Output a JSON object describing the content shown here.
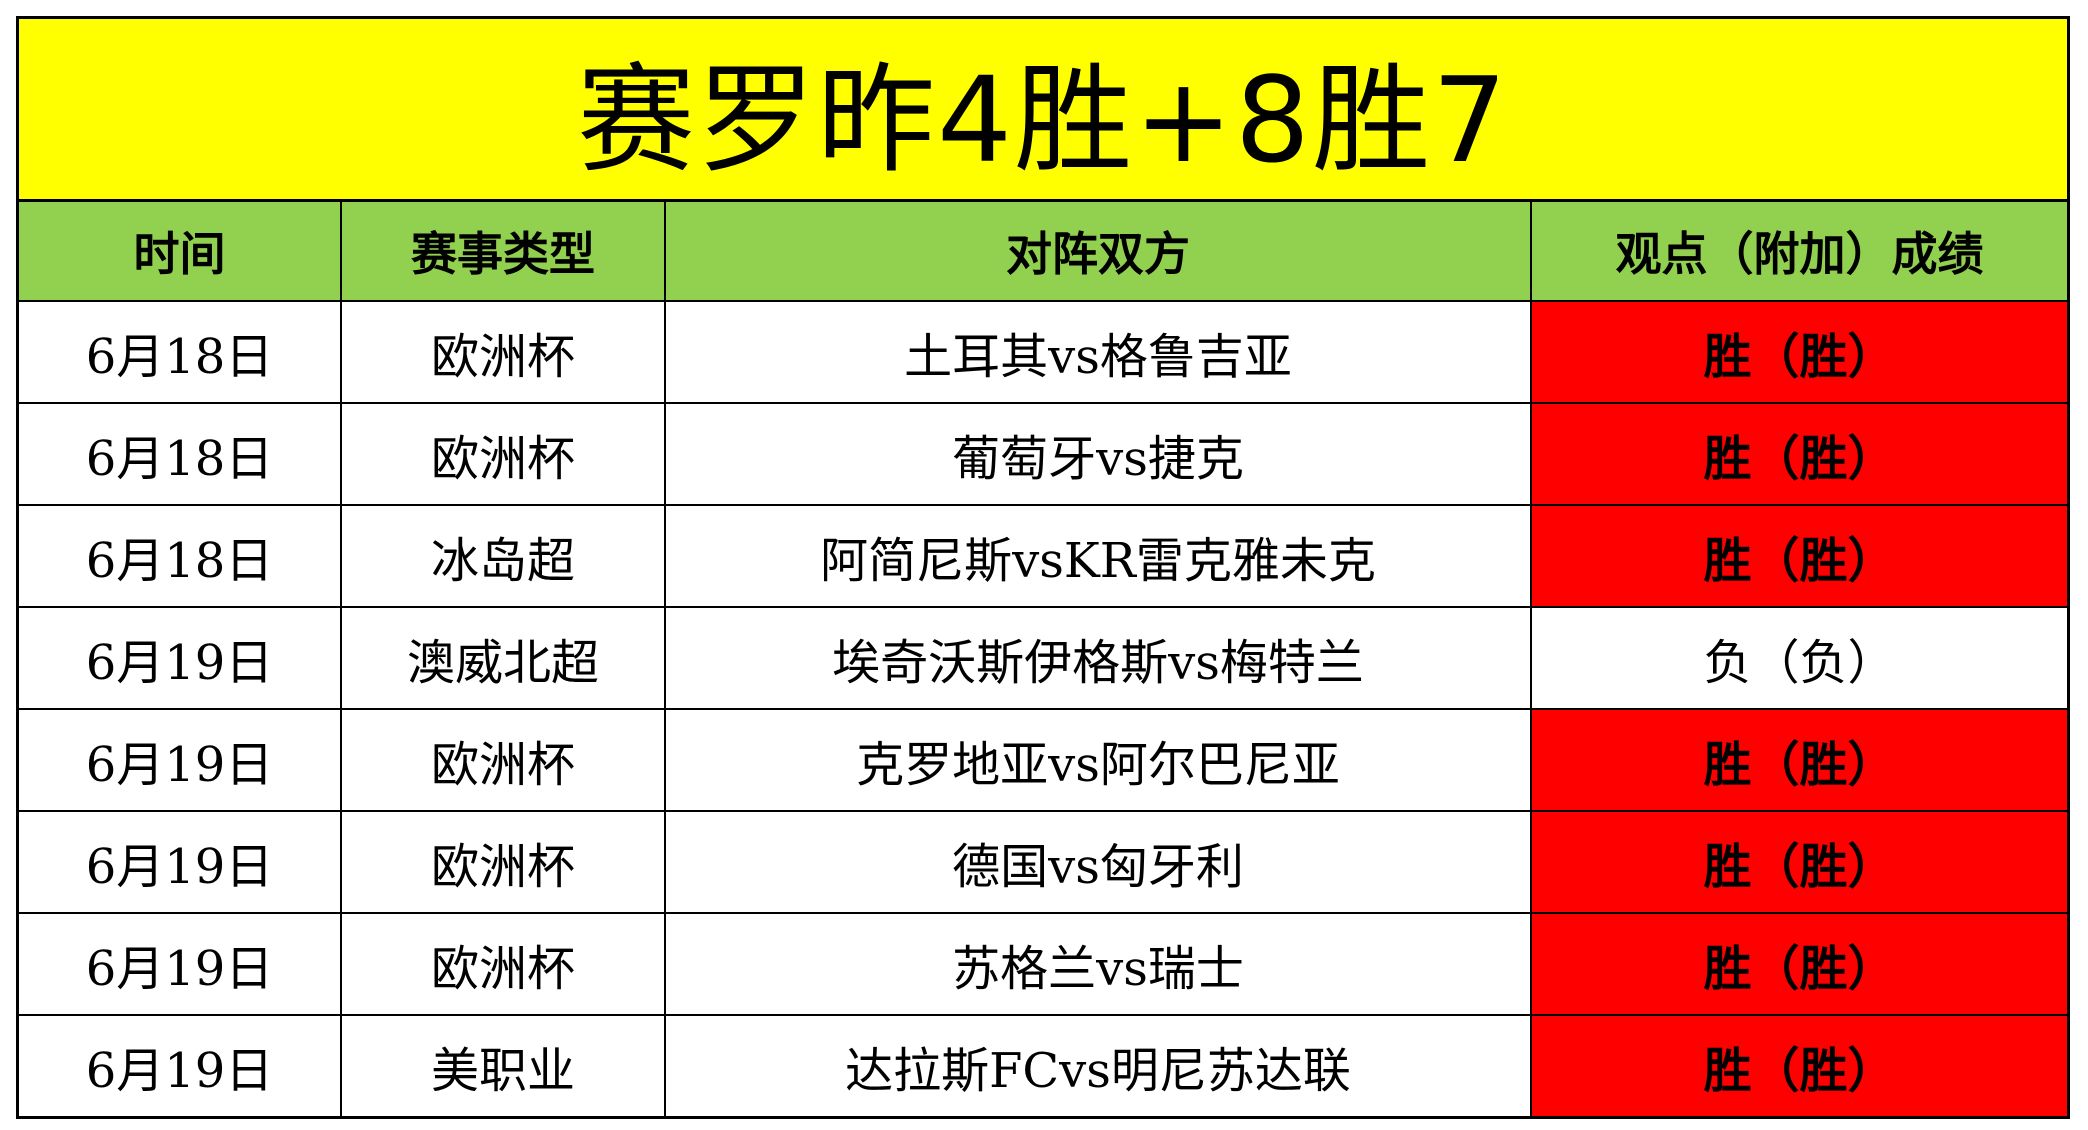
{
  "title": "赛罗昨4胜+8胜7",
  "colors": {
    "title_bg": "#ffff00",
    "header_bg": "#92d050",
    "win_bg": "#ff0000",
    "loss_bg": "#ffffff"
  },
  "headers": [
    "时间",
    "赛事类型",
    "对阵双方",
    "观点（附加）成绩"
  ],
  "rows": [
    {
      "date": "6月18日",
      "league": "欧洲杯",
      "match": "土耳其vs格鲁吉亚",
      "result": "胜（胜）",
      "status": "win"
    },
    {
      "date": "6月18日",
      "league": "欧洲杯",
      "match": "葡萄牙vs捷克",
      "result": "胜（胜）",
      "status": "win"
    },
    {
      "date": "6月18日",
      "league": "冰岛超",
      "match": "阿简尼斯vsKR雷克雅未克",
      "result": "胜（胜）",
      "status": "win"
    },
    {
      "date": "6月19日",
      "league": "澳威北超",
      "match": "埃奇沃斯伊格斯vs梅特兰",
      "result": "负（负）",
      "status": "loss"
    },
    {
      "date": "6月19日",
      "league": "欧洲杯",
      "match": "克罗地亚vs阿尔巴尼亚",
      "result": "胜（胜）",
      "status": "win"
    },
    {
      "date": "6月19日",
      "league": "欧洲杯",
      "match": "德国vs匈牙利",
      "result": "胜（胜）",
      "status": "win"
    },
    {
      "date": "6月19日",
      "league": "欧洲杯",
      "match": "苏格兰vs瑞士",
      "result": "胜（胜）",
      "status": "win"
    },
    {
      "date": "6月19日",
      "league": "美职业",
      "match": "达拉斯FCvs明尼苏达联",
      "result": "胜（胜）",
      "status": "win"
    }
  ]
}
